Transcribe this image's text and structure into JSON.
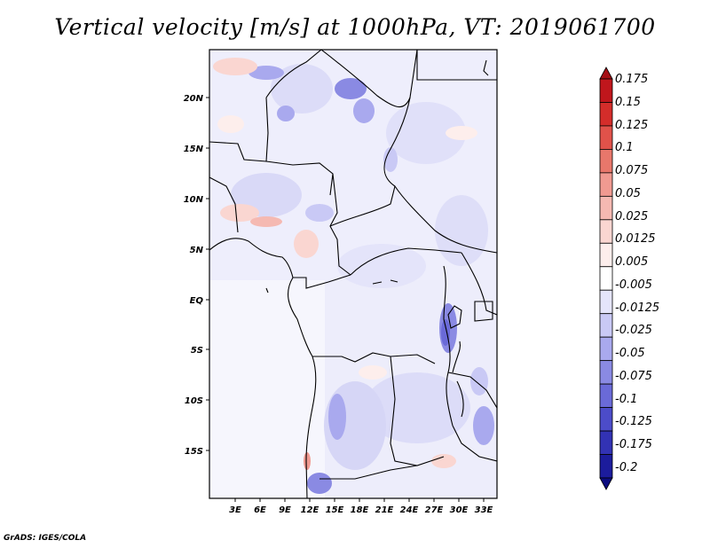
{
  "title": "Vertical velocity [m/s] at 1000hPa, VT: 2019061700",
  "footer": "GrADS: IGES/COLA",
  "lat_labels": [
    "20N",
    "15N",
    "10N",
    "5N",
    "EQ",
    "5S",
    "10S",
    "15S"
  ],
  "lon_labels": [
    "3E",
    "6E",
    "9E",
    "12E",
    "15E",
    "18E",
    "21E",
    "24E",
    "27E",
    "30E",
    "33E"
  ],
  "colorbar": {
    "labels": [
      "0.175",
      "0.15",
      "0.125",
      "0.1",
      "0.075",
      "0.05",
      "0.025",
      "0.0125",
      "0.005",
      "-0.005",
      "-0.0125",
      "-0.025",
      "-0.05",
      "-0.075",
      "-0.1",
      "-0.125",
      "-0.175",
      "-0.2"
    ],
    "colors": [
      "#a50f15",
      "#c0161c",
      "#d42d2a",
      "#e0524a",
      "#e8776b",
      "#f09a91",
      "#f5b9b2",
      "#fad6d1",
      "#fdeeec",
      "#ffffff",
      "#e5e5fb",
      "#c9c9f5",
      "#a9a9ee",
      "#8a8ae3",
      "#6a6ad8",
      "#4c4cc9",
      "#3232b4",
      "#1c1c9c",
      "#0c0c7f"
    ]
  }
}
